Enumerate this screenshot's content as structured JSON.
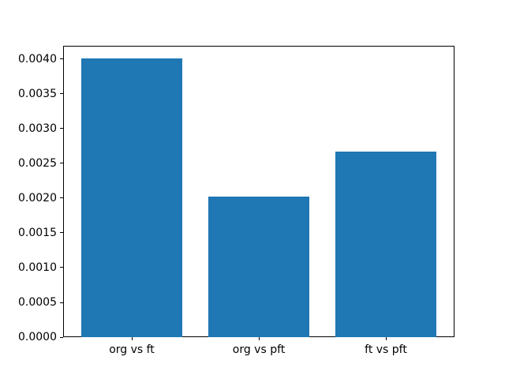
{
  "figure": {
    "background": "#ffffff",
    "plot_background": "#ffffff",
    "spine_color": "#000000",
    "text_color": "#000000"
  },
  "chart_data": {
    "type": "bar",
    "title": "",
    "xlabel": "",
    "ylabel": "",
    "categories": [
      "org vs ft",
      "org vs pft",
      "ft vs pft"
    ],
    "values": [
      0.00401,
      0.00202,
      0.00267
    ],
    "bar_color": "#1f77b4",
    "ylim": [
      0,
      0.00419
    ],
    "yticks": [
      0.0,
      0.0005,
      0.001,
      0.0015,
      0.002,
      0.0025,
      0.003,
      0.0035,
      0.004
    ],
    "ytick_decimals": 4,
    "grid": false,
    "legend": null
  }
}
